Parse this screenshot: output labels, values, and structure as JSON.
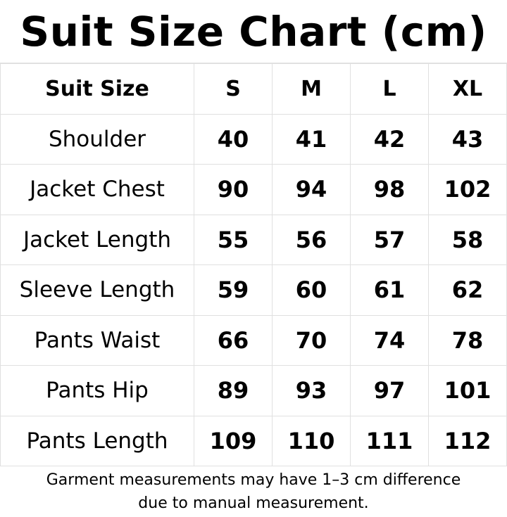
{
  "title": "Suit Size Chart (cm)",
  "table": {
    "header": [
      "Suit Size",
      "S",
      "M",
      "L",
      "XL"
    ],
    "rows": [
      {
        "label": "Shoulder",
        "values": [
          "40",
          "41",
          "42",
          "43"
        ]
      },
      {
        "label": "Jacket Chest",
        "values": [
          "90",
          "94",
          "98",
          "102"
        ]
      },
      {
        "label": "Jacket Length",
        "values": [
          "55",
          "56",
          "57",
          "58"
        ]
      },
      {
        "label": "Sleeve Length",
        "values": [
          "59",
          "60",
          "61",
          "62"
        ]
      },
      {
        "label": "Pants Waist",
        "values": [
          "66",
          "70",
          "74",
          "78"
        ]
      },
      {
        "label": "Pants Hip",
        "values": [
          "89",
          "93",
          "97",
          "101"
        ]
      },
      {
        "label": "Pants Length",
        "values": [
          "109",
          "110",
          "111",
          "112"
        ]
      }
    ]
  },
  "note": {
    "line1": "Garment measurements may have 1–3 cm difference",
    "line2": "due to manual measurement."
  },
  "colors": {
    "border": "#e0e0e0",
    "text": "#000000",
    "background": "#ffffff"
  }
}
